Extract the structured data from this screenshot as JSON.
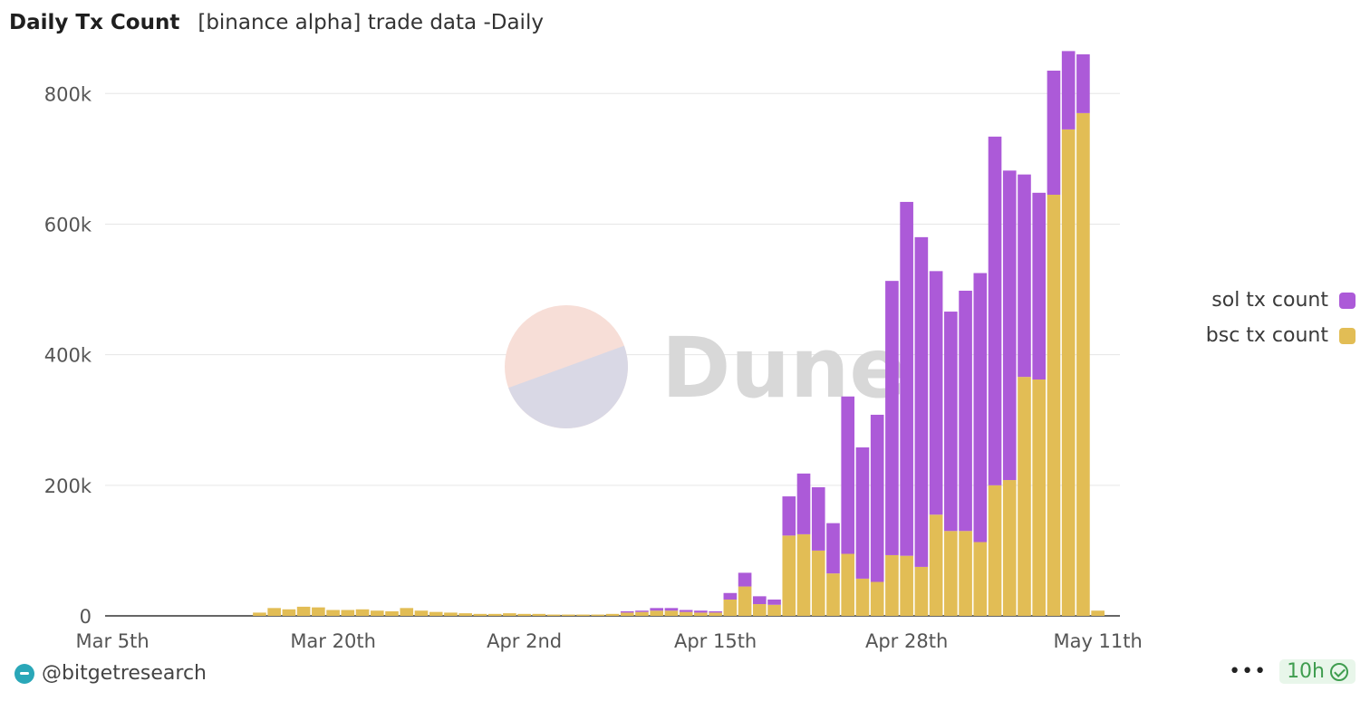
{
  "header": {
    "title": "Daily Tx Count",
    "subtitle": "[binance alpha] trade data -Daily"
  },
  "watermark": {
    "text": "Dune",
    "colors": {
      "top": "#f7ded7",
      "bottom": "#d9d8e5",
      "text": "#d8d8d8"
    }
  },
  "legend": [
    {
      "label": "sol tx count",
      "color": "#ac5ad8"
    },
    {
      "label": "bsc tx count",
      "color": "#e2bd55"
    }
  ],
  "footer": {
    "author": "@bitgetresearch",
    "more": "•••",
    "age": "10h"
  },
  "chart_data": {
    "type": "bar",
    "stacked": true,
    "ylim": [
      0,
      860000
    ],
    "yticks": [
      0,
      200000,
      400000,
      600000,
      800000
    ],
    "ytick_labels": [
      "0",
      "200k",
      "400k",
      "600k",
      "800k"
    ],
    "xtick_labels": [
      {
        "label": "Mar 5th",
        "date": "Mar 5"
      },
      {
        "label": "Mar 20th",
        "date": "Mar 20"
      },
      {
        "label": "Apr 2nd",
        "date": "Apr 2"
      },
      {
        "label": "Apr 15th",
        "date": "Apr 15"
      },
      {
        "label": "Apr 28th",
        "date": "Apr 28"
      },
      {
        "label": "May 11th",
        "date": "May 11"
      }
    ],
    "grid": true,
    "legend_position": "right",
    "categories": [
      "Mar 5",
      "Mar 6",
      "Mar 7",
      "Mar 8",
      "Mar 9",
      "Mar 10",
      "Mar 11",
      "Mar 12",
      "Mar 13",
      "Mar 14",
      "Mar 15",
      "Mar 16",
      "Mar 17",
      "Mar 18",
      "Mar 19",
      "Mar 20",
      "Mar 21",
      "Mar 22",
      "Mar 23",
      "Mar 24",
      "Mar 25",
      "Mar 26",
      "Mar 27",
      "Mar 28",
      "Mar 29",
      "Mar 30",
      "Mar 31",
      "Apr 1",
      "Apr 2",
      "Apr 3",
      "Apr 4",
      "Apr 5",
      "Apr 6",
      "Apr 7",
      "Apr 8",
      "Apr 9",
      "Apr 10",
      "Apr 11",
      "Apr 12",
      "Apr 13",
      "Apr 14",
      "Apr 15",
      "Apr 16",
      "Apr 17",
      "Apr 18",
      "Apr 19",
      "Apr 20",
      "Apr 21",
      "Apr 22",
      "Apr 23",
      "Apr 24",
      "Apr 25",
      "Apr 26",
      "Apr 27",
      "Apr 28",
      "Apr 29",
      "Apr 30",
      "May 1",
      "May 2",
      "May 3",
      "May 4",
      "May 5",
      "May 6",
      "May 7",
      "May 8",
      "May 9",
      "May 10",
      "May 11",
      "May 12"
    ],
    "series": [
      {
        "name": "bsc tx count",
        "color": "#e2bd55",
        "values": [
          0,
          0,
          0,
          0,
          0,
          0,
          0,
          0,
          0,
          0,
          5000,
          12000,
          10000,
          14000,
          13000,
          9000,
          9000,
          10000,
          8000,
          7000,
          12000,
          8000,
          6000,
          5000,
          4000,
          3000,
          3000,
          4000,
          3000,
          3000,
          2000,
          2000,
          2000,
          2000,
          3000,
          5000,
          6000,
          8000,
          8000,
          6000,
          5000,
          5000,
          25000,
          45000,
          18000,
          17000,
          123000,
          125000,
          100000,
          65000,
          95000,
          57000,
          52000,
          93000,
          92000,
          75000,
          155000,
          130000,
          130000,
          113000,
          200000,
          208000,
          366000,
          362000,
          645000,
          745000,
          770000,
          8000,
          0
        ]
      },
      {
        "name": "sol tx count",
        "color": "#ac5ad8",
        "values": [
          0,
          0,
          0,
          0,
          0,
          0,
          0,
          0,
          0,
          0,
          0,
          0,
          0,
          0,
          0,
          0,
          0,
          0,
          0,
          0,
          0,
          0,
          0,
          0,
          0,
          0,
          0,
          0,
          0,
          0,
          0,
          0,
          0,
          0,
          0,
          2000,
          2000,
          4000,
          4000,
          3000,
          3000,
          2000,
          10000,
          21000,
          12000,
          8000,
          60000,
          93000,
          97000,
          77000,
          241000,
          201000,
          256000,
          420000,
          542000,
          505000,
          373000,
          336000,
          368000,
          412000,
          534000,
          474000,
          310000,
          286000,
          190000,
          120000,
          90000,
          0,
          0
        ]
      }
    ]
  }
}
